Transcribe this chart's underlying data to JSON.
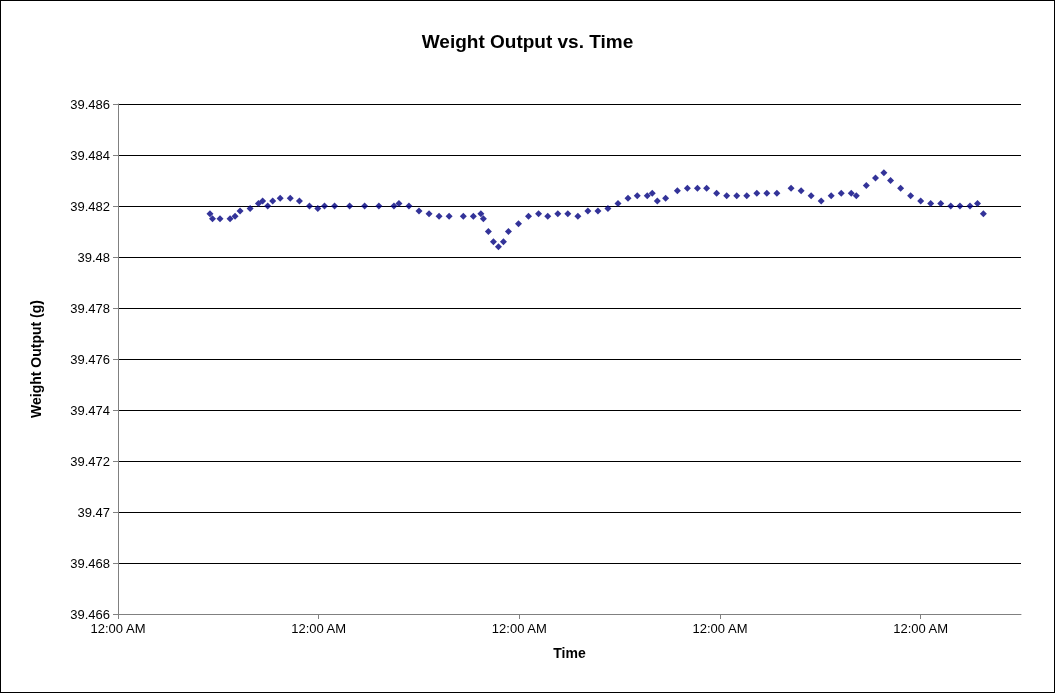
{
  "chart_data": {
    "type": "scatter",
    "title": "Weight Output vs. Time",
    "xlabel": "Time",
    "ylabel": "Weight Output (g)",
    "xlim": [
      "2000-01-01T00:00",
      "2000-01-05T12:00"
    ],
    "xticks": [
      {
        "value": "2000-01-01T00:00",
        "label": "12:00 AM"
      },
      {
        "value": "2000-01-02T00:00",
        "label": "12:00 AM"
      },
      {
        "value": "2000-01-03T00:00",
        "label": "12:00 AM"
      },
      {
        "value": "2000-01-04T00:00",
        "label": "12:00 AM"
      },
      {
        "value": "2000-01-05T00:00",
        "label": "12:00 AM"
      }
    ],
    "ylim": [
      39.466,
      39.486
    ],
    "yticks": [
      39.466,
      39.468,
      39.47,
      39.472,
      39.474,
      39.476,
      39.478,
      39.48,
      39.482,
      39.484,
      39.486
    ],
    "grid": "y",
    "marker": "diamond",
    "series": [
      {
        "color": "#000080",
        "x": [
          "2000-01-01T11:00",
          "2000-01-01T11:18",
          "2000-01-01T12:12",
          "2000-01-01T13:24",
          "2000-01-01T14:00",
          "2000-01-01T14:36",
          "2000-01-01T15:48",
          "2000-01-01T16:48",
          "2000-01-01T17:18",
          "2000-01-01T17:54",
          "2000-01-01T18:30",
          "2000-01-01T19:24",
          "2000-01-01T20:36",
          "2000-01-01T21:42",
          "2000-01-01T22:54",
          "2000-01-01T23:54",
          "2000-01-02T00:42",
          "2000-01-02T01:54",
          "2000-01-02T03:42",
          "2000-01-02T05:30",
          "2000-01-02T07:12",
          "2000-01-02T09:00",
          "2000-01-02T09:36",
          "2000-01-02T10:48",
          "2000-01-02T12:00",
          "2000-01-02T13:12",
          "2000-01-02T14:24",
          "2000-01-02T15:36",
          "2000-01-02T17:18",
          "2000-01-02T18:30",
          "2000-01-02T19:24",
          "2000-01-02T19:42",
          "2000-01-02T20:18",
          "2000-01-02T20:54",
          "2000-01-02T21:30",
          "2000-01-02T22:06",
          "2000-01-02T22:42",
          "2000-01-02T23:54",
          "2000-01-03T01:06",
          "2000-01-03T02:18",
          "2000-01-03T03:24",
          "2000-01-03T04:36",
          "2000-01-03T05:48",
          "2000-01-03T07:00",
          "2000-01-03T08:12",
          "2000-01-03T09:24",
          "2000-01-03T10:36",
          "2000-01-03T11:48",
          "2000-01-03T13:00",
          "2000-01-03T14:06",
          "2000-01-03T15:18",
          "2000-01-03T15:54",
          "2000-01-03T16:30",
          "2000-01-03T17:30",
          "2000-01-03T18:54",
          "2000-01-03T20:06",
          "2000-01-03T21:18",
          "2000-01-03T22:24",
          "2000-01-03T23:36",
          "2000-01-04T00:48",
          "2000-01-04T02:00",
          "2000-01-04T03:12",
          "2000-01-04T04:24",
          "2000-01-04T05:36",
          "2000-01-04T06:48",
          "2000-01-04T08:30",
          "2000-01-04T09:42",
          "2000-01-04T10:54",
          "2000-01-04T12:06",
          "2000-01-04T13:18",
          "2000-01-04T14:30",
          "2000-01-04T15:42",
          "2000-01-04T16:18",
          "2000-01-04T17:30",
          "2000-01-04T18:36",
          "2000-01-04T19:36",
          "2000-01-04T20:24",
          "2000-01-04T21:36",
          "2000-01-04T22:48",
          "2000-01-05T00:00",
          "2000-01-05T01:12",
          "2000-01-05T02:24",
          "2000-01-05T03:36",
          "2000-01-05T04:42",
          "2000-01-05T05:54",
          "2000-01-05T06:48",
          "2000-01-05T07:30"
        ],
        "values": [
          39.4817,
          39.4815,
          39.4815,
          39.4815,
          39.4816,
          39.4818,
          39.4819,
          39.4821,
          39.4822,
          39.482,
          39.4822,
          39.4823,
          39.4823,
          39.4822,
          39.482,
          39.4819,
          39.482,
          39.482,
          39.482,
          39.482,
          39.482,
          39.482,
          39.4821,
          39.482,
          39.4818,
          39.4817,
          39.4816,
          39.4816,
          39.4816,
          39.4816,
          39.4817,
          39.4815,
          39.481,
          39.4806,
          39.4804,
          39.4806,
          39.481,
          39.4813,
          39.4816,
          39.4817,
          39.4816,
          39.4817,
          39.4817,
          39.4816,
          39.4818,
          39.4818,
          39.4819,
          39.4821,
          39.4823,
          39.4824,
          39.4824,
          39.4825,
          39.4822,
          39.4823,
          39.4826,
          39.4827,
          39.4827,
          39.4827,
          39.4825,
          39.4824,
          39.4824,
          39.4824,
          39.4825,
          39.4825,
          39.4825,
          39.4827,
          39.4826,
          39.4824,
          39.4822,
          39.4824,
          39.4825,
          39.4825,
          39.4824,
          39.4828,
          39.4831,
          39.4833,
          39.483,
          39.4827,
          39.4824,
          39.4822,
          39.4821,
          39.4821,
          39.482,
          39.482,
          39.482,
          39.4821,
          39.4817
        ]
      }
    ]
  }
}
